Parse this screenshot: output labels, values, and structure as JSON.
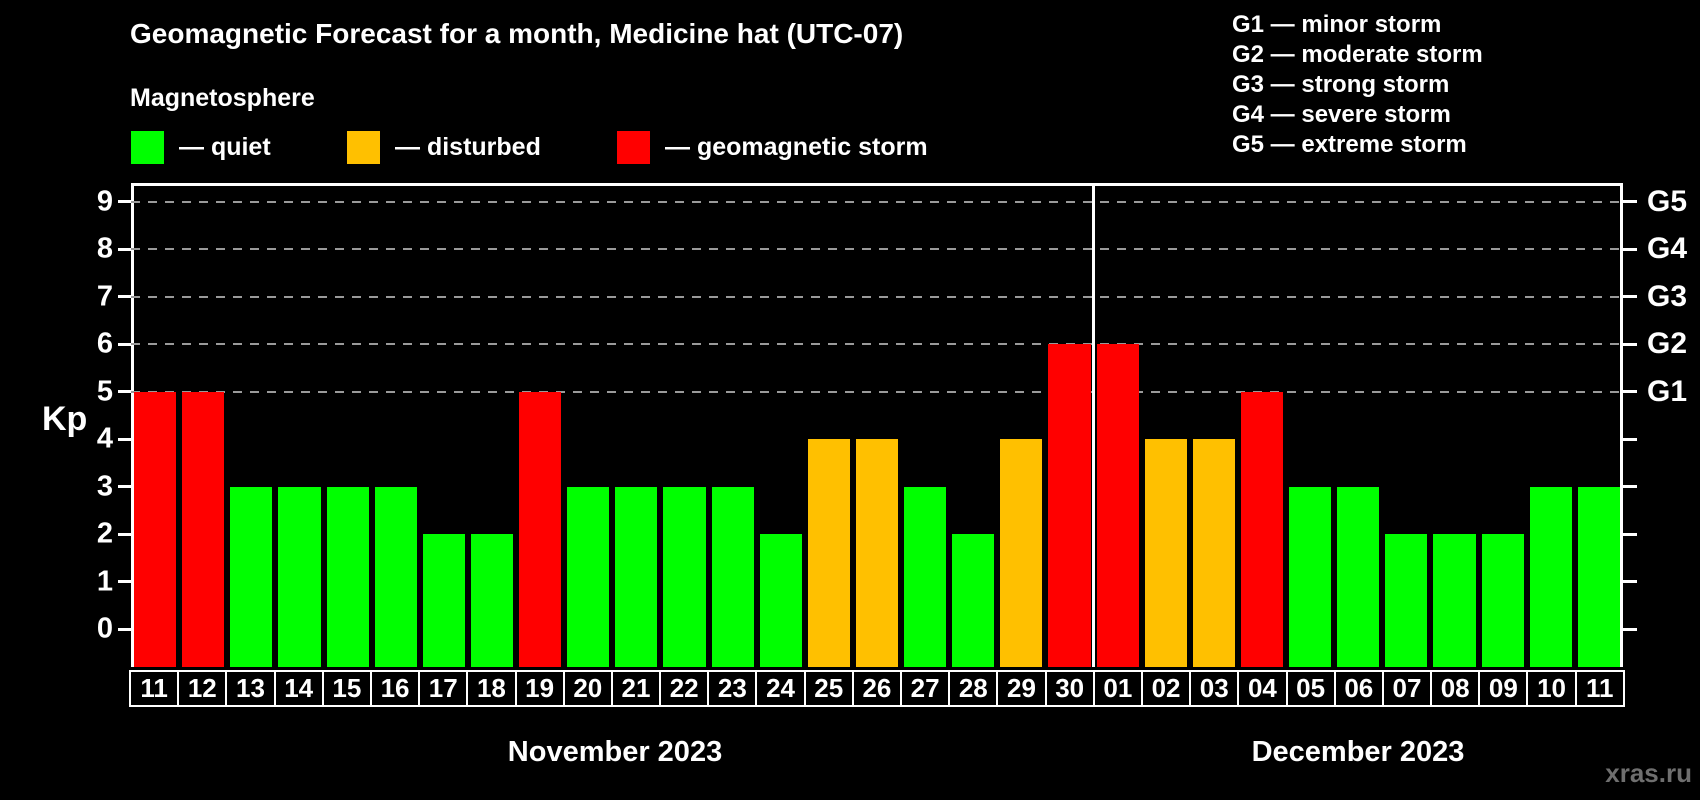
{
  "title": "Geomagnetic Forecast for a month, Medicine hat (UTC-07)",
  "watermark": "xras.ru",
  "colors": {
    "background": "#000000",
    "text": "#ffffff",
    "grid": "#9a9a9a",
    "axis": "#ffffff",
    "watermark": "#6f6f6f"
  },
  "legend": {
    "title": "Magnetosphere",
    "items": [
      {
        "status": "quiet",
        "label": "— quiet",
        "color": "#00ff00"
      },
      {
        "status": "disturbed",
        "label": "— disturbed",
        "color": "#ffc000"
      },
      {
        "status": "storm",
        "label": "— geomagnetic storm",
        "color": "#ff0000"
      }
    ]
  },
  "g_legend": {
    "items": [
      "G1 — minor storm",
      "G2 — moderate storm",
      "G3 — strong storm",
      "G4 — severe storm",
      "G5 — extreme storm"
    ]
  },
  "chart_data": {
    "type": "bar",
    "ylabel": "Kp",
    "ylim": [
      0,
      9
    ],
    "yticks": [
      0,
      1,
      2,
      3,
      4,
      5,
      6,
      7,
      8,
      9
    ],
    "grid": "dashed horizontal lines at Kp 5–9 only",
    "legend_position": "top",
    "right_axis_labels": [
      {
        "kp": 5,
        "label": "G1"
      },
      {
        "kp": 6,
        "label": "G2"
      },
      {
        "kp": 7,
        "label": "G3"
      },
      {
        "kp": 8,
        "label": "G4"
      },
      {
        "kp": 9,
        "label": "G5"
      }
    ],
    "months": [
      {
        "label": "November 2023",
        "days": [
          {
            "date": "11",
            "kp": 5,
            "status": "storm"
          },
          {
            "date": "12",
            "kp": 5,
            "status": "storm"
          },
          {
            "date": "13",
            "kp": 3,
            "status": "quiet"
          },
          {
            "date": "14",
            "kp": 3,
            "status": "quiet"
          },
          {
            "date": "15",
            "kp": 3,
            "status": "quiet"
          },
          {
            "date": "16",
            "kp": 3,
            "status": "quiet"
          },
          {
            "date": "17",
            "kp": 2,
            "status": "quiet"
          },
          {
            "date": "18",
            "kp": 2,
            "status": "quiet"
          },
          {
            "date": "19",
            "kp": 5,
            "status": "storm"
          },
          {
            "date": "20",
            "kp": 3,
            "status": "quiet"
          },
          {
            "date": "21",
            "kp": 3,
            "status": "quiet"
          },
          {
            "date": "22",
            "kp": 3,
            "status": "quiet"
          },
          {
            "date": "23",
            "kp": 3,
            "status": "quiet"
          },
          {
            "date": "24",
            "kp": 2,
            "status": "quiet"
          },
          {
            "date": "25",
            "kp": 4,
            "status": "disturbed"
          },
          {
            "date": "26",
            "kp": 4,
            "status": "disturbed"
          },
          {
            "date": "27",
            "kp": 3,
            "status": "quiet"
          },
          {
            "date": "28",
            "kp": 2,
            "status": "quiet"
          },
          {
            "date": "29",
            "kp": 4,
            "status": "disturbed"
          },
          {
            "date": "30",
            "kp": 6,
            "status": "storm"
          }
        ]
      },
      {
        "label": "December 2023",
        "days": [
          {
            "date": "01",
            "kp": 6,
            "status": "storm"
          },
          {
            "date": "02",
            "kp": 4,
            "status": "disturbed"
          },
          {
            "date": "03",
            "kp": 4,
            "status": "disturbed"
          },
          {
            "date": "04",
            "kp": 5,
            "status": "storm"
          },
          {
            "date": "05",
            "kp": 3,
            "status": "quiet"
          },
          {
            "date": "06",
            "kp": 3,
            "status": "quiet"
          },
          {
            "date": "07",
            "kp": 2,
            "status": "quiet"
          },
          {
            "date": "08",
            "kp": 2,
            "status": "quiet"
          },
          {
            "date": "09",
            "kp": 2,
            "status": "quiet"
          },
          {
            "date": "10",
            "kp": 3,
            "status": "quiet"
          },
          {
            "date": "11",
            "kp": 3,
            "status": "quiet"
          }
        ]
      }
    ]
  }
}
